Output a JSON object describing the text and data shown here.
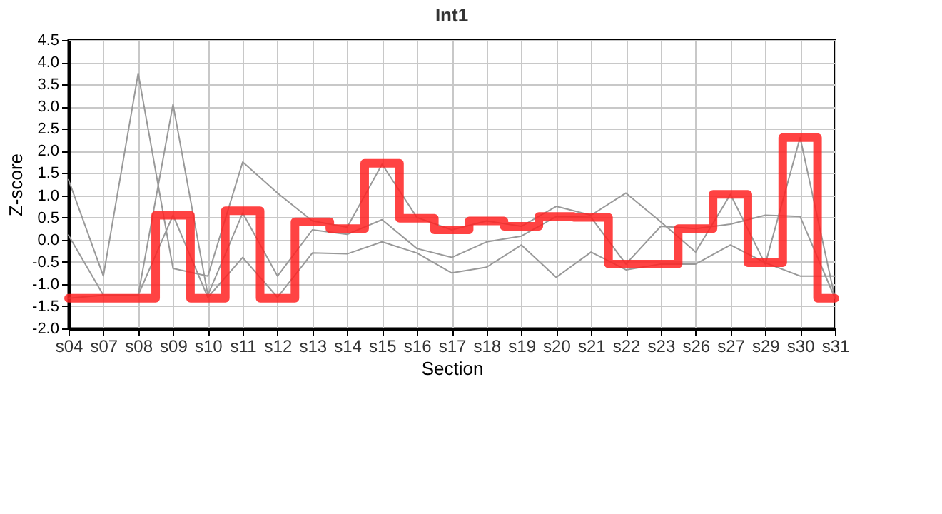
{
  "chart_data": {
    "type": "line",
    "title": "Int1",
    "xlabel": "Section",
    "ylabel": "Z-score",
    "categories": [
      "s04",
      "s07",
      "s08",
      "s09",
      "s10",
      "s11",
      "s12",
      "s13",
      "s14",
      "s15",
      "s16",
      "s17",
      "s18",
      "s19",
      "s20",
      "s21",
      "s22",
      "s23",
      "s26",
      "s27",
      "s29",
      "s30",
      "s31"
    ],
    "series": [
      {
        "color": "#999999",
        "values": [
          1.35,
          -0.82,
          3.75,
          -0.65,
          -0.82,
          1.75,
          1.05,
          0.42,
          0.28,
          1.7,
          0.5,
          0.22,
          0.42,
          0.3,
          0.75,
          0.55,
          1.05,
          0.4,
          -0.28,
          1.02,
          -0.55,
          2.3,
          -1.32
        ]
      },
      {
        "color": "#999999",
        "values": [
          0.1,
          -1.25,
          -1.25,
          3.05,
          -1.25,
          0.6,
          -0.82,
          0.22,
          0.12,
          0.45,
          -0.2,
          -0.4,
          -0.05,
          0.08,
          0.52,
          0.5,
          -0.55,
          0.3,
          0.25,
          0.35,
          0.55,
          0.52,
          -1.32
        ]
      },
      {
        "color": "#999999",
        "values": [
          -1.32,
          -1.25,
          -1.25,
          0.55,
          -1.3,
          -0.4,
          -1.3,
          -0.3,
          -0.32,
          -0.05,
          -0.3,
          -0.75,
          -0.62,
          -0.12,
          -0.85,
          -0.28,
          -0.68,
          -0.55,
          -0.55,
          -0.12,
          -0.52,
          -0.82,
          -0.82
        ]
      },
      {
        "color": "#ff2222",
        "type": "step",
        "values": [
          -1.32,
          -1.32,
          -1.32,
          0.55,
          -1.32,
          0.65,
          -1.32,
          0.4,
          0.25,
          1.72,
          0.48,
          0.22,
          0.42,
          0.3,
          0.52,
          0.5,
          -0.55,
          -0.55,
          0.25,
          1.02,
          -0.52,
          2.3,
          -1.32
        ]
      }
    ],
    "ylim": [
      -2.0,
      4.5
    ],
    "yticks": [
      {
        "value": -2,
        "label": "-2.0"
      },
      -1.5,
      {
        "value": -1,
        "label": "-1.0"
      },
      -0.5,
      {
        "value": 0,
        "label": "0.0"
      },
      0.5,
      {
        "value": 1,
        "label": "1.0"
      },
      1.5,
      {
        "value": 2,
        "label": "2.0"
      },
      2.5,
      {
        "value": 3,
        "label": "3.0"
      },
      3.5,
      {
        "value": 4,
        "label": "4.0"
      },
      4.5
    ],
    "grid": true
  }
}
